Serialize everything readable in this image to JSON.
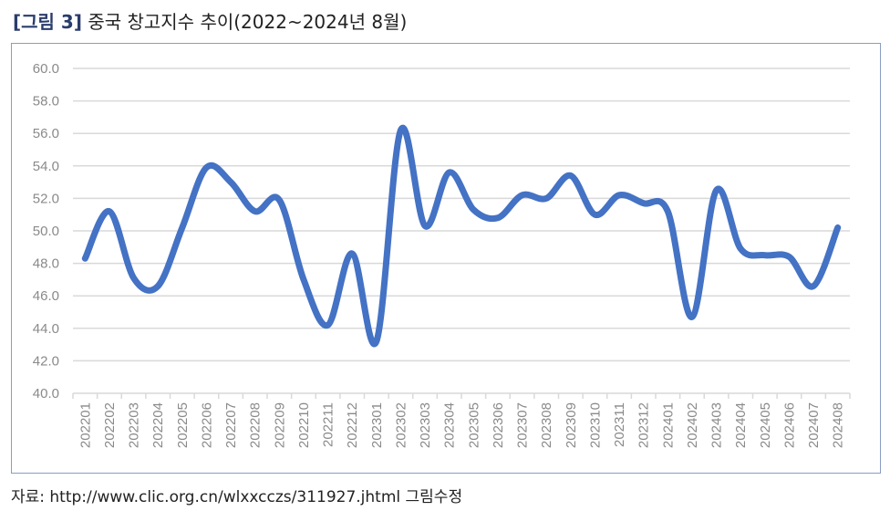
{
  "figure": {
    "label": "[그림 3]",
    "title": "중국 창고지수 추이(2022~2024년 8월)",
    "source": "자료: http://www.clic.org.cn/wlxxcczs/311927.jhtml 그림수정"
  },
  "colors": {
    "line": "#4472C4",
    "grid": "#d9d9d9",
    "axis_text": "#8a8a8a",
    "frame": "#8a9cc2"
  },
  "chart_data": {
    "type": "line",
    "title": "",
    "xlabel": "",
    "ylabel": "",
    "ylim": [
      40.0,
      60.0
    ],
    "yticks": [
      "40.0",
      "42.0",
      "44.0",
      "46.0",
      "48.0",
      "50.0",
      "52.0",
      "54.0",
      "56.0",
      "58.0",
      "60.0"
    ],
    "grid": true,
    "legend": "none",
    "categories": [
      "202201",
      "202202",
      "202203",
      "202204",
      "202205",
      "202206",
      "202207",
      "202208",
      "202209",
      "202210",
      "202211",
      "202212",
      "202301",
      "202302",
      "202303",
      "202304",
      "202305",
      "202306",
      "202307",
      "202308",
      "202309",
      "202310",
      "202311",
      "202312",
      "202401",
      "202402",
      "202403",
      "202404",
      "202405",
      "202406",
      "202407",
      "202408"
    ],
    "series": [
      {
        "values": [
          48.3,
          51.2,
          47.1,
          46.6,
          50.2,
          53.9,
          53.0,
          51.2,
          51.9,
          47.0,
          44.2,
          48.6,
          43.2,
          56.2,
          50.3,
          53.6,
          51.3,
          50.8,
          52.2,
          52.0,
          53.4,
          51.0,
          52.2,
          51.7,
          51.2,
          44.7,
          52.5,
          48.9,
          48.5,
          48.4,
          46.6,
          50.2
        ]
      }
    ]
  }
}
